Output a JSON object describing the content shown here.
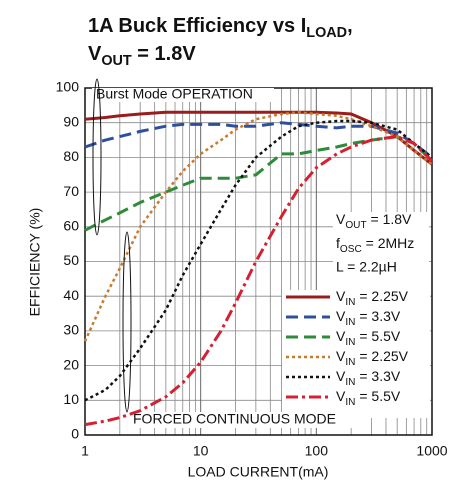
{
  "chart_data": {
    "type": "line",
    "title": [
      "1A Buck Efficiency vs ILOAD,",
      "VOUT = 1.8V"
    ],
    "xlabel": "LOAD CURRENT(mA)",
    "ylabel": "EFFICIENCY (%)",
    "xscale": "log",
    "grid": true,
    "minor_grid": true,
    "legend": "lower right",
    "annotations": [
      "Burst Mode OPERATION",
      "FORCED CONTINUOUS MODE",
      "VOUT = 1.8V",
      "fOSC = 2MHz",
      "L = 2.2µH"
    ],
    "x": [
      1,
      1.5,
      2,
      3,
      5,
      7,
      10,
      15,
      20,
      30,
      50,
      70,
      100,
      150,
      200,
      300,
      500,
      700,
      1000
    ],
    "xlim": [
      1,
      1000
    ],
    "xticks": [
      1,
      10,
      100,
      1000
    ],
    "ylim": [
      0,
      100
    ],
    "yticks": [
      0,
      10,
      20,
      30,
      40,
      50,
      60,
      70,
      80,
      90,
      100
    ],
    "series": [
      {
        "name": "VIN = 2.25V",
        "color": "#9b1c1c",
        "style": "solid",
        "values": [
          91,
          91.5,
          92,
          92.5,
          93,
          93,
          93,
          93,
          93,
          93,
          93,
          93,
          93,
          92.8,
          92.5,
          90,
          86,
          82,
          78
        ]
      },
      {
        "name": "VIN = 3.3V",
        "color": "#2e4fa0",
        "style": "dashed",
        "values": [
          83,
          85,
          86,
          87.5,
          89,
          89.5,
          89.5,
          89.5,
          89,
          89,
          90,
          89.5,
          89,
          88.5,
          89,
          89,
          87,
          84,
          80
        ]
      },
      {
        "name": "VIN = 5.5V",
        "color": "#2e8b3a",
        "style": "dashed",
        "values": [
          59,
          62,
          64,
          67,
          70,
          72,
          74,
          74,
          74,
          75,
          81,
          81,
          82,
          83,
          84,
          85,
          86,
          84,
          79
        ]
      },
      {
        "name": "VIN = 2.25V",
        "color": "#c87a2e",
        "style": "dotted",
        "values": [
          27,
          40,
          48,
          60,
          70,
          76,
          81,
          85,
          88,
          91,
          92.5,
          93,
          92.5,
          92,
          91,
          89,
          86,
          82,
          78
        ]
      },
      {
        "name": "VIN = 3.3V",
        "color": "#111111",
        "style": "dotted",
        "values": [
          10,
          13,
          17,
          25,
          36,
          46,
          55,
          65,
          72,
          80,
          86,
          89,
          90,
          90.5,
          90.5,
          90,
          88,
          84,
          80
        ]
      },
      {
        "name": "VIN = 5.5V",
        "color": "#d42030",
        "style": "dashdot",
        "values": [
          3,
          4,
          5,
          7,
          11,
          15,
          21,
          30,
          38,
          50,
          63,
          71,
          77,
          81,
          83,
          85,
          86,
          84,
          79
        ]
      }
    ]
  }
}
